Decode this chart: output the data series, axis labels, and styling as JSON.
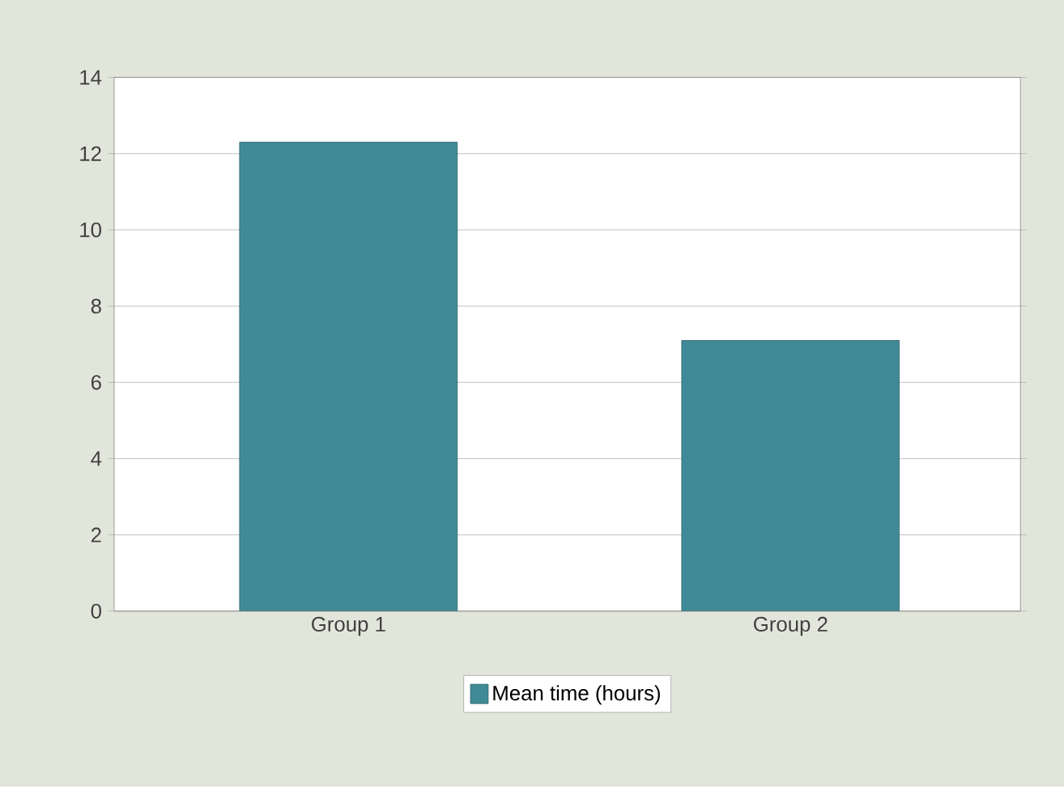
{
  "chart_data": {
    "type": "bar",
    "categories": [
      "Group 1",
      "Group 2"
    ],
    "series": [
      {
        "name": "Mean time (hours)",
        "color": "#3f8a96",
        "values": [
          12.3,
          7.1
        ]
      }
    ],
    "ylim": [
      0,
      14
    ],
    "yticks": [
      0,
      2,
      4,
      6,
      8,
      10,
      12,
      14
    ],
    "grid": "y",
    "legend": "bottom"
  }
}
